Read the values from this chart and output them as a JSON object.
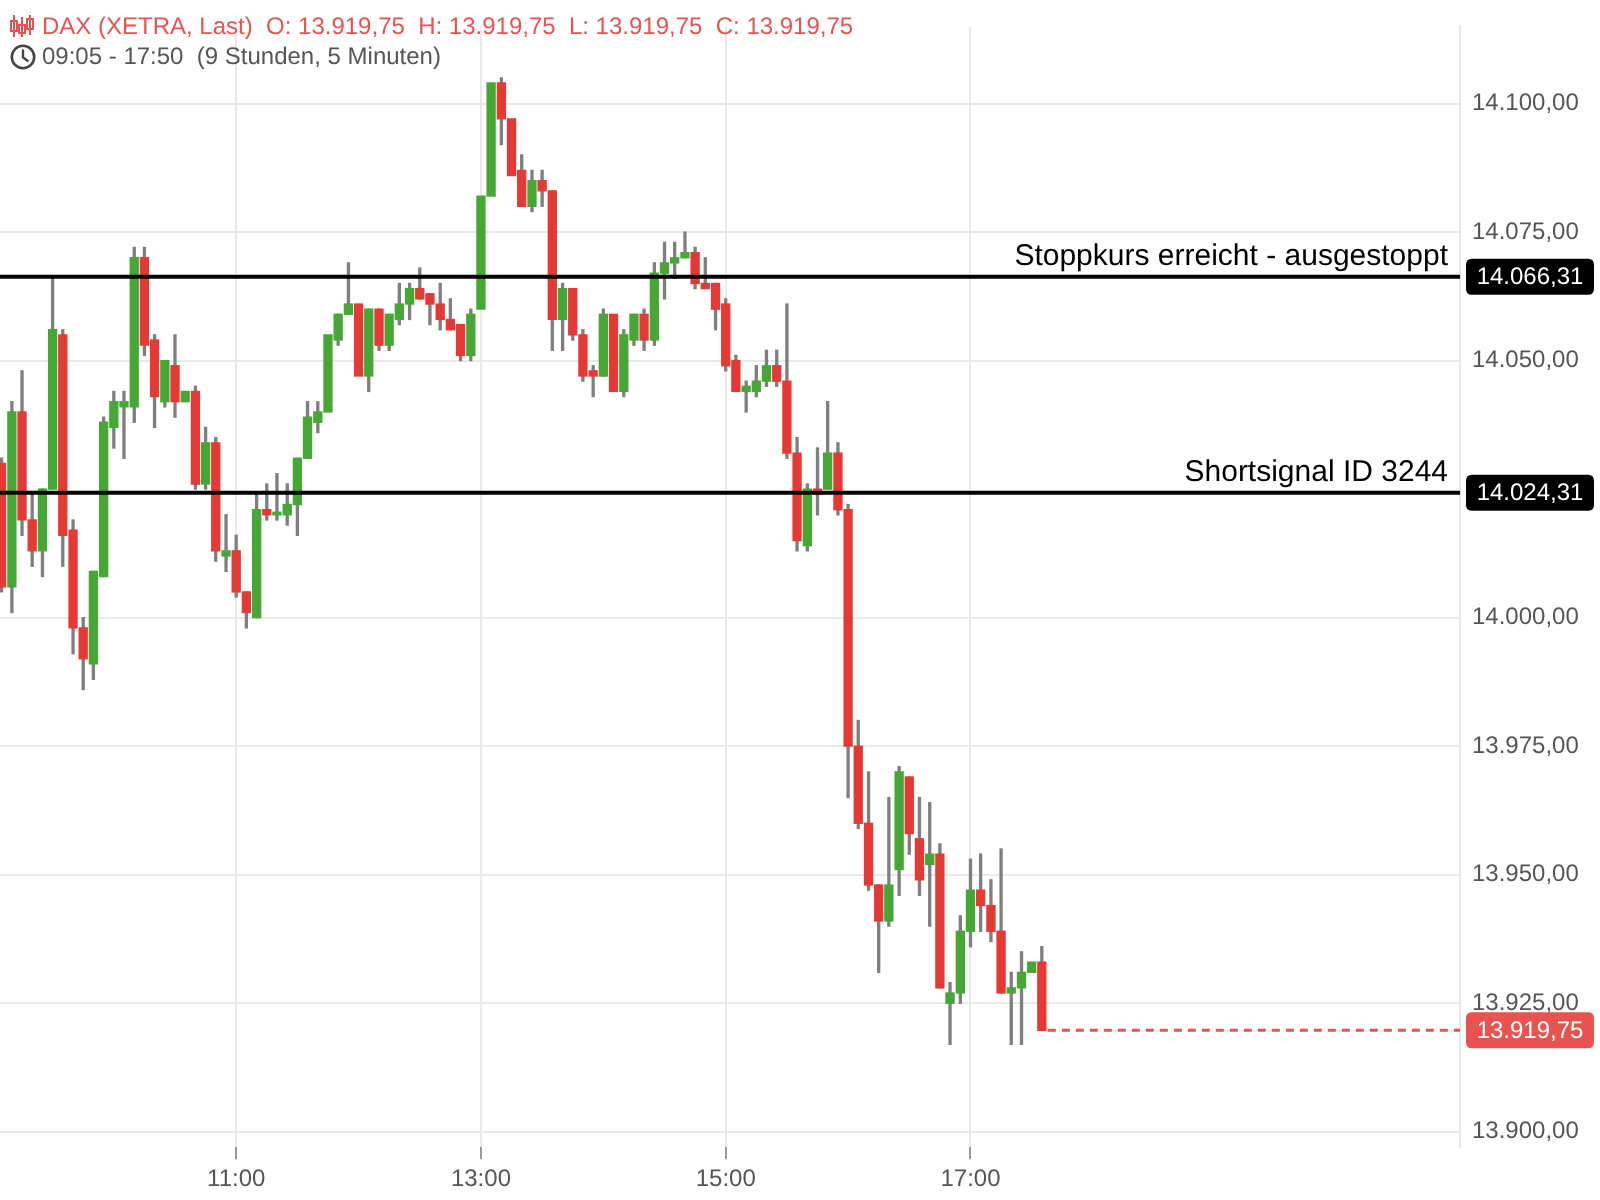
{
  "chart_data": {
    "type": "candlestick",
    "title": "DAX (XETRA, Last)  O: 13.919,75  H: 13.919,75  L: 13.919,75  C: 13.919,75",
    "subtitle": "09:05 - 17:50  (9 Stunden, 5 Minuten)",
    "x": [
      9.083,
      9.167,
      9.25,
      9.333,
      9.417,
      9.5,
      9.583,
      9.667,
      9.75,
      9.833,
      9.917,
      10,
      10.083,
      10.167,
      10.25,
      10.333,
      10.417,
      10.5,
      10.583,
      10.667,
      10.75,
      10.833,
      10.917,
      11,
      11.083,
      11.167,
      11.25,
      11.333,
      11.417,
      11.5,
      11.583,
      11.667,
      11.75,
      11.833,
      11.917,
      12,
      12.083,
      12.167,
      12.25,
      12.333,
      12.417,
      12.5,
      12.583,
      12.667,
      12.75,
      12.833,
      12.917,
      13,
      13.083,
      13.167,
      13.25,
      13.333,
      13.417,
      13.5,
      13.583,
      13.667,
      13.75,
      13.833,
      13.917,
      14,
      14.083,
      14.167,
      14.25,
      14.333,
      14.417,
      14.5,
      14.583,
      14.667,
      14.75,
      14.833,
      14.917,
      15,
      15.083,
      15.167,
      15.25,
      15.333,
      15.417,
      15.5,
      15.583,
      15.667,
      15.75,
      15.833,
      15.917,
      16,
      16.083,
      16.167,
      16.25,
      16.333,
      16.417,
      16.5,
      16.583,
      16.667,
      16.75,
      16.833,
      16.917,
      17,
      17.083,
      17.167,
      17.25,
      17.333,
      17.417,
      17.5,
      17.583
    ],
    "ohlc": [
      [
        14030,
        14031,
        14005,
        14006
      ],
      [
        14006,
        14042,
        14001,
        14040
      ],
      [
        14040,
        14048,
        14016,
        14019
      ],
      [
        14019,
        14024,
        14010,
        14013
      ],
      [
        14013,
        14025,
        14008,
        14025
      ],
      [
        14025,
        14066,
        14025,
        14056
      ],
      [
        14055,
        14056,
        14010,
        14016
      ],
      [
        14017,
        14019,
        13993,
        13998
      ],
      [
        13998,
        14000,
        13986,
        13992
      ],
      [
        13991,
        14009,
        13988,
        14009
      ],
      [
        14008,
        14039,
        14008,
        14038
      ],
      [
        14037,
        14044,
        14033,
        14042
      ],
      [
        14041,
        14044,
        14031,
        14042
      ],
      [
        14041,
        14072,
        14038,
        14070
      ],
      [
        14070,
        14072,
        14051,
        14053
      ],
      [
        14054,
        14055,
        14037,
        14043
      ],
      [
        14042,
        14050,
        14041,
        14050
      ],
      [
        14049,
        14055,
        14039,
        14042
      ],
      [
        14042,
        14044,
        14042,
        14044
      ],
      [
        14044,
        14045,
        14025,
        14026
      ],
      [
        14026,
        14037,
        14025,
        14034
      ],
      [
        14034,
        14035,
        14011,
        14013
      ],
      [
        14012,
        14020,
        14009,
        14013
      ],
      [
        14013,
        14016,
        14004,
        14005
      ],
      [
        14005,
        14005,
        13998,
        14001
      ],
      [
        14000,
        14024,
        14000,
        14021
      ],
      [
        14021,
        14026,
        14019,
        14020
      ],
      [
        14020,
        14028,
        14019,
        14020.5
      ],
      [
        14020,
        14026,
        14018,
        14022
      ],
      [
        14022,
        14031,
        14016,
        14031
      ],
      [
        14031,
        14042,
        14031,
        14039
      ],
      [
        14038,
        14042,
        14036,
        14040
      ],
      [
        14040,
        14055,
        14040,
        14055
      ],
      [
        14054,
        14059,
        14053,
        14059
      ],
      [
        14059,
        14069,
        14059,
        14061
      ],
      [
        14061,
        14061,
        14047,
        14047
      ],
      [
        14047,
        14060,
        14044,
        14060
      ],
      [
        14060,
        14060,
        14052,
        14053
      ],
      [
        14053,
        14059,
        14052,
        14059
      ],
      [
        14058,
        14065,
        14057,
        14061
      ],
      [
        14061,
        14065,
        14058,
        14064
      ],
      [
        14064,
        14068,
        14062,
        14062
      ],
      [
        14063,
        14063,
        14057,
        14061
      ],
      [
        14061,
        14065,
        14056,
        14058
      ],
      [
        14058,
        14062,
        14056,
        14056
      ],
      [
        14057,
        14057,
        14050,
        14051
      ],
      [
        14051,
        14060,
        14050,
        14059
      ],
      [
        14060,
        14082,
        14060,
        14082
      ],
      [
        14082,
        14104,
        14082,
        14104
      ],
      [
        14104,
        14105,
        14092,
        14097
      ],
      [
        14097,
        14097,
        14086,
        14086
      ],
      [
        14087,
        14090,
        14080,
        14080
      ],
      [
        14080,
        14087,
        14079,
        14085
      ],
      [
        14085,
        14087,
        14080,
        14083
      ],
      [
        14083,
        14083,
        14052,
        14058
      ],
      [
        14058,
        14065,
        14052,
        14064
      ],
      [
        14064,
        14064,
        14054,
        14055
      ],
      [
        14055,
        14056,
        14046,
        14047
      ],
      [
        14048,
        14049,
        14043,
        14047
      ],
      [
        14047,
        14060,
        14047,
        14059
      ],
      [
        14059,
        14059,
        14044,
        14044
      ],
      [
        14044,
        14056,
        14043,
        14055
      ],
      [
        14054,
        14059,
        14053,
        14059
      ],
      [
        14059,
        14060,
        14052,
        14054
      ],
      [
        14054,
        14069,
        14053,
        14067
      ],
      [
        14067,
        14073,
        14062,
        14069
      ],
      [
        14069,
        14073,
        14066,
        14070
      ],
      [
        14070,
        14075,
        14070,
        14071
      ],
      [
        14071,
        14072,
        14064,
        14065
      ],
      [
        14065,
        14070,
        14064,
        14064
      ],
      [
        14065,
        14065,
        14056,
        14060
      ],
      [
        14061,
        14062,
        14048,
        14049
      ],
      [
        14050,
        14051,
        14044,
        14044
      ],
      [
        14044,
        14046,
        14040,
        14045
      ],
      [
        14044,
        14049,
        14043,
        14046
      ],
      [
        14046,
        14052,
        14045,
        14049
      ],
      [
        14049,
        14052,
        14045,
        14046
      ],
      [
        14046,
        14061,
        14031,
        14032
      ],
      [
        14032,
        14035,
        14013,
        14015
      ],
      [
        14014,
        14026,
        14013,
        14025
      ],
      [
        14025,
        14033,
        14020,
        14024
      ],
      [
        14025,
        14042,
        14025,
        14032
      ],
      [
        14032,
        14034,
        14020,
        14021
      ],
      [
        14021,
        14022,
        13965,
        13975
      ],
      [
        13975,
        13980,
        13959,
        13960
      ],
      [
        13960,
        13970,
        13947,
        13948
      ],
      [
        13948,
        13948,
        13931,
        13941
      ],
      [
        13941,
        13965,
        13940,
        13948
      ],
      [
        13951,
        13971,
        13946,
        13970
      ],
      [
        13969,
        13969,
        13954,
        13958
      ],
      [
        13957,
        13965,
        13946,
        13949
      ],
      [
        13952,
        13964,
        13940,
        13954
      ],
      [
        13954,
        13956,
        13928,
        13928
      ],
      [
        13925,
        13929,
        13917,
        13927
      ],
      [
        13927,
        13942,
        13925,
        13939
      ],
      [
        13939,
        13953,
        13936,
        13947
      ],
      [
        13947,
        13954,
        13939,
        13944
      ],
      [
        13944,
        13949,
        13937,
        13939
      ],
      [
        13939,
        13955,
        13927,
        13927
      ],
      [
        13927,
        13931,
        13917,
        13928
      ],
      [
        13928,
        13935,
        13917,
        13931
      ],
      [
        13931,
        13933,
        13931,
        13933
      ],
      [
        13933,
        13936,
        13919.75,
        13919.75
      ]
    ],
    "colors": [
      "#e53935",
      "#45a834",
      "#e53935",
      "#e53935",
      "#45a834",
      "#45a834",
      "#e53935",
      "#e53935",
      "#e53935",
      "#45a834",
      "#45a834",
      "#45a834",
      "#45a834",
      "#45a834",
      "#e53935",
      "#e53935",
      "#45a834",
      "#e53935",
      "#45a834",
      "#e53935",
      "#45a834",
      "#e53935",
      "#45a834",
      "#e53935",
      "#e53935",
      "#45a834",
      "#e53935",
      "#45a834",
      "#45a834",
      "#45a834",
      "#45a834",
      "#45a834",
      "#45a834",
      "#45a834",
      "#45a834",
      "#e53935",
      "#45a834",
      "#e53935",
      "#45a834",
      "#45a834",
      "#45a834",
      "#e53935",
      "#e53935",
      "#e53935",
      "#e53935",
      "#e53935",
      "#45a834",
      "#45a834",
      "#45a834",
      "#e53935",
      "#e53935",
      "#e53935",
      "#45a834",
      "#e53935",
      "#e53935",
      "#45a834",
      "#e53935",
      "#e53935",
      "#e53935",
      "#45a834",
      "#e53935",
      "#45a834",
      "#45a834",
      "#e53935",
      "#45a834",
      "#45a834",
      "#45a834",
      "#45a834",
      "#e53935",
      "#e53935",
      "#e53935",
      "#e53935",
      "#e53935",
      "#45a834",
      "#45a834",
      "#45a834",
      "#e53935",
      "#e53935",
      "#e53935",
      "#45a834",
      "#e53935",
      "#45a834",
      "#e53935",
      "#e53935",
      "#e53935",
      "#e53935",
      "#e53935",
      "#45a834",
      "#45a834",
      "#e53935",
      "#e53935",
      "#45a834",
      "#e53935",
      "#45a834",
      "#45a834",
      "#45a834",
      "#e53935",
      "#e53935",
      "#e53935",
      "#45a834",
      "#45a834",
      "#45a834",
      "#e53935"
    ],
    "xlim": [
      9.07,
      21
    ],
    "xticks": [
      {
        "value": 11,
        "label": "11:00"
      },
      {
        "value": 13,
        "label": "13:00"
      },
      {
        "value": 15,
        "label": "15:00"
      },
      {
        "value": 17,
        "label": "17:00"
      }
    ],
    "ylim": [
      13897,
      14115
    ],
    "yticks": [
      {
        "value": 13900,
        "label": "13.900,00"
      },
      {
        "value": 13925,
        "label": "13.925,00"
      },
      {
        "value": 13950,
        "label": "13.950,00"
      },
      {
        "value": 13975,
        "label": "13.975,00"
      },
      {
        "value": 14000,
        "label": "14.000,00"
      },
      {
        "value": 14050,
        "label": "14.050,00"
      },
      {
        "value": 14075,
        "label": "14.075,00"
      },
      {
        "value": 14100,
        "label": "14.100,00"
      }
    ],
    "grid": true,
    "ref_lines": [
      {
        "axis": "y",
        "value": 14066.31,
        "label": "14.066,31",
        "color": "#000000"
      },
      {
        "axis": "y",
        "value": 14024.31,
        "label": "14.024,31",
        "color": "#000000"
      },
      {
        "axis": "y",
        "value": 13919.75,
        "label": "13.919,75",
        "color": "#e8534f",
        "line_style": "dashed"
      }
    ],
    "annotations": [
      {
        "text": "Stoppkurs erreicht - ausgestoppt",
        "y": 14066.31
      },
      {
        "text": "Shortsignal ID 3244",
        "y": 14024.31
      }
    ]
  }
}
